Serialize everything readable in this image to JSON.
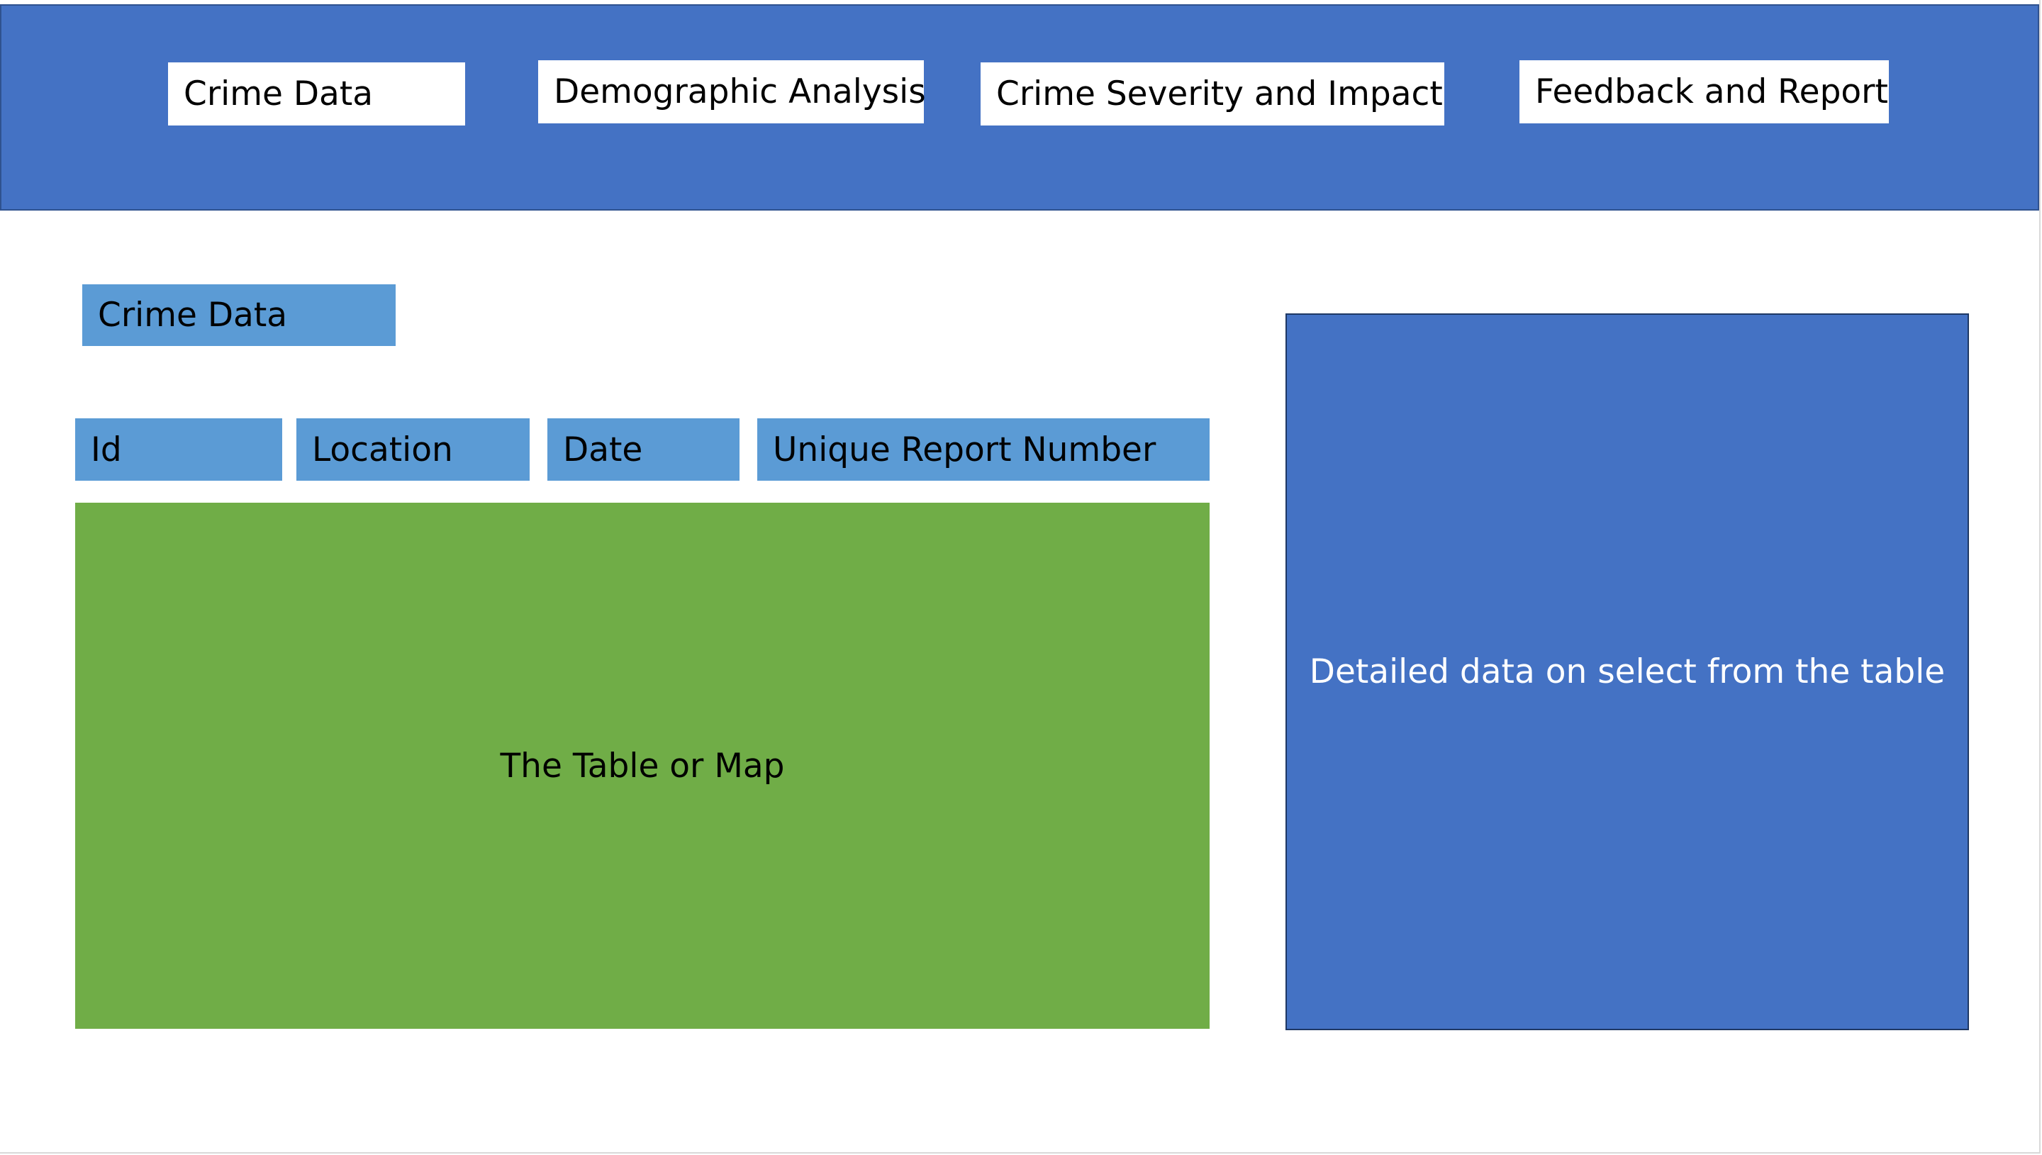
{
  "header": {
    "nav": [
      {
        "label": "Crime Data"
      },
      {
        "label": "Demographic Analysis"
      },
      {
        "label": "Crime Severity and Impact"
      },
      {
        "label": "Feedback and Report"
      }
    ]
  },
  "main": {
    "section_title": "Crime Data",
    "columns": [
      {
        "label": "Id"
      },
      {
        "label": "Location"
      },
      {
        "label": "Date"
      },
      {
        "label": "Unique Report Number"
      }
    ],
    "table_placeholder": "The Table or Map",
    "detail_placeholder": "Detailed data on select from the table"
  },
  "colors": {
    "header_bg": "#4472c4",
    "header_border": "#2f528f",
    "accent_light_blue": "#5b9bd5",
    "table_green": "#70ad47",
    "detail_border": "#1f3864"
  }
}
